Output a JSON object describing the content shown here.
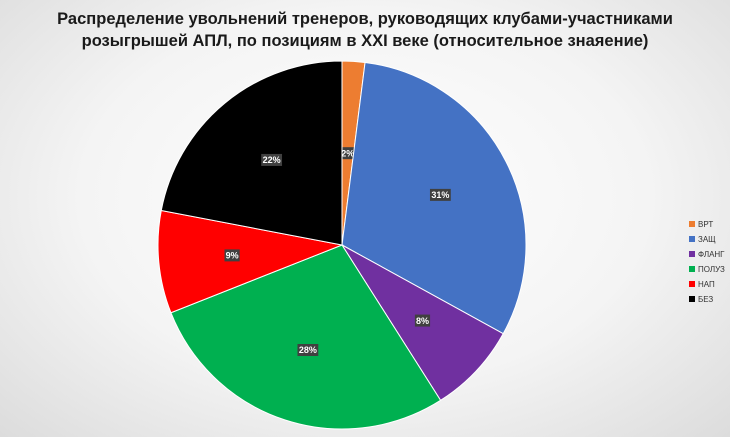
{
  "chart_data": {
    "type": "pie",
    "title_line1": "Распределение увольнений тренеров, руководящих клубами-участниками",
    "title_line2": "розыгрышей АПЛ, по позициям в XXI веке (относительное знаяение)",
    "categories": [
      "ВРТ",
      "ЗАЩ",
      "ФЛАНГ",
      "ПОЛУЗ",
      "НАП",
      "БЕЗ"
    ],
    "values": [
      2,
      31,
      8,
      28,
      9,
      22
    ],
    "labels": [
      "2%",
      "31%",
      "8%",
      "28%",
      "9%",
      "22%"
    ],
    "colors": [
      "#ed7d31",
      "#4472c4",
      "#7030a0",
      "#00b050",
      "#ff0000",
      "#000000"
    ],
    "legend_position": "right",
    "start_angle": "top",
    "direction": "clockwise"
  }
}
